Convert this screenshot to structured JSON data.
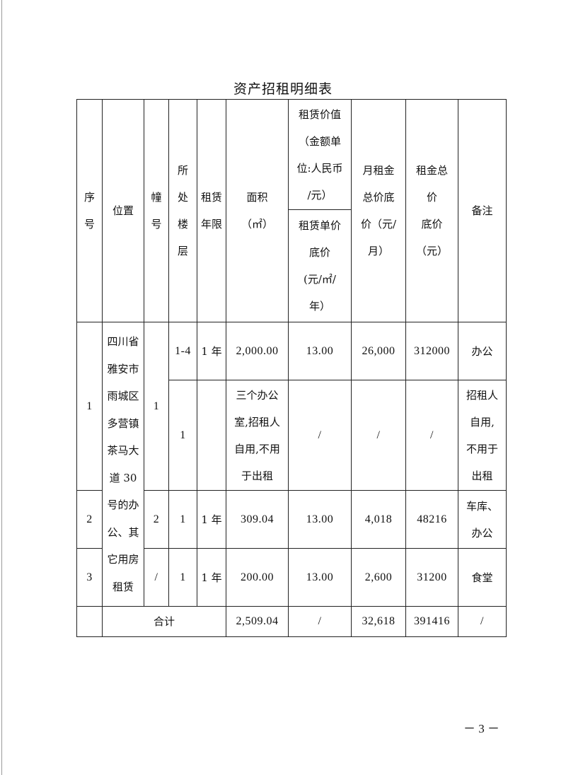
{
  "title": "资产招租明细表",
  "headers": {
    "seq": "序\n号",
    "location": "位置",
    "building": "幢\n号",
    "floor": "所\n处\n楼\n层",
    "term": "租赁\n年限",
    "area": "面积\n（㎡）",
    "lease_value": "租赁价值\n（金额单\n位:人民币\n/元）",
    "unit_price": "租赁单价\n底价\n(元/㎡/\n年）",
    "monthly": "月租金\n总价底\n价（元/\n月）",
    "total": "租金总\n价\n底价\n（元）",
    "remark": "备注"
  },
  "location_text": "四川省\n雅安市\n雨城区\n多营镇\n茶马大\n道 30\n号的办\n公、其\n它用房\n租赁",
  "rows": [
    {
      "seq": "1",
      "building": "1",
      "floor": "1-4",
      "term": "1 年",
      "area": "2,000.00",
      "unit_price": "13.00",
      "monthly": "26,000",
      "total": "312000",
      "remark": "办公"
    },
    {
      "floor": "1",
      "term": "",
      "area": "三个办公\n室,招租人\n自用,不用\n于出租",
      "unit_price": "/",
      "monthly": "/",
      "total": "/",
      "remark": "招租人\n自用,\n不用于\n出租"
    },
    {
      "seq": "2",
      "building": "2",
      "floor": "1",
      "term": "1 年",
      "area": "309.04",
      "unit_price": "13.00",
      "monthly": "4,018",
      "total": "48216",
      "remark": "车库、\n办公"
    },
    {
      "seq": "3",
      "building": "/",
      "floor": "1",
      "term": "1 年",
      "area": "200.00",
      "unit_price": "13.00",
      "monthly": "2,600",
      "total": "31200",
      "remark": "食堂"
    }
  ],
  "total_row": {
    "seq": "",
    "label": "合计",
    "area": "2,509.04",
    "unit_price": "/",
    "monthly": "32,618",
    "total": "391416",
    "remark": "/"
  },
  "page_number": "－ 3 －"
}
